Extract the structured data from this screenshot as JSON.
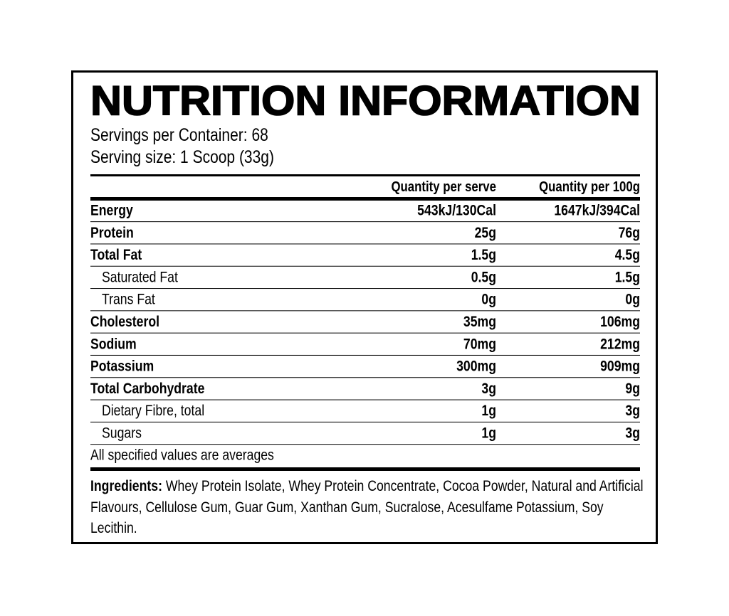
{
  "header": {
    "title": "NUTRITION INFORMATION",
    "servings_per_container": "Servings per Container: 68",
    "serving_size": "Serving size: 1 Scoop (33g)"
  },
  "table": {
    "columns": [
      "Quantity per serve",
      "Quantity per 100g"
    ],
    "rows": [
      {
        "name": "Energy",
        "values": [
          "543kJ/130Cal",
          "1647kJ/394Cal"
        ]
      },
      {
        "name": "Protein",
        "values": [
          "25g",
          "76g"
        ]
      },
      {
        "name": "Total Fat",
        "values": [
          "1.5g",
          "4.5g"
        ]
      },
      {
        "name": "Saturated Fat",
        "sub": true,
        "values": [
          "0.5g",
          "1.5g"
        ]
      },
      {
        "name": "Trans Fat",
        "sub": true,
        "values": [
          "0g",
          "0g"
        ]
      },
      {
        "name": "Cholesterol",
        "values": [
          "35mg",
          "106mg"
        ]
      },
      {
        "name": "Sodium",
        "values": [
          "70mg",
          "212mg"
        ]
      },
      {
        "name": "Potassium",
        "values": [
          "300mg",
          "909mg"
        ]
      },
      {
        "name": "Total Carbohydrate",
        "values": [
          "3g",
          "9g"
        ]
      },
      {
        "name": "Dietary Fibre, total",
        "sub": true,
        "values": [
          "1g",
          "3g"
        ]
      },
      {
        "name": "Sugars",
        "sub": true,
        "values": [
          "1g",
          "3g"
        ]
      }
    ]
  },
  "footnote": "All specified values are averages",
  "ingredients": {
    "label": "Ingredients:",
    "text": "Whey Protein Isolate, Whey Protein Concentrate, Cocoa Powder, Natural and Artificial Flavours, Cellulose Gum, Guar Gum, Xanthan Gum, Sucralose, Acesulfame Potassium, Soy Lecithin."
  }
}
